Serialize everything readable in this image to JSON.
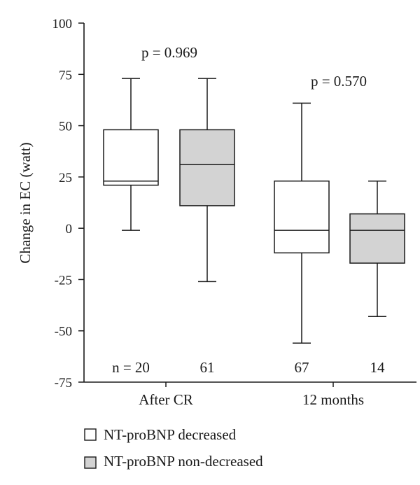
{
  "chart_data": {
    "type": "boxplot",
    "ylabel": "Change in EC (watt)",
    "ylim": [
      -75,
      100
    ],
    "yticks": [
      100,
      75,
      50,
      25,
      0,
      -25,
      -50,
      -75
    ],
    "ytick_labels": [
      "100",
      "75",
      "50",
      "25",
      "0",
      "-25",
      "-50",
      "-75"
    ],
    "categories": [
      "After CR",
      "12 months"
    ],
    "groups": [
      {
        "category": "After CR",
        "series": "NT-proBNP decreased",
        "n_label": "n = 20",
        "whisker_low": -1,
        "q1": 21,
        "median": 23,
        "q3": 48,
        "whisker_high": 73
      },
      {
        "category": "After CR",
        "series": "NT-proBNP non-decreased",
        "n_label": "61",
        "whisker_low": -26,
        "q1": 11,
        "median": 31,
        "q3": 48,
        "whisker_high": 73
      },
      {
        "category": "12 months",
        "series": "NT-proBNP decreased",
        "n_label": "67",
        "whisker_low": -56,
        "q1": -12,
        "median": -1,
        "q3": 23,
        "whisker_high": 61
      },
      {
        "category": "12 months",
        "series": "NT-proBNP non-decreased",
        "n_label": "14",
        "whisker_low": -43,
        "q1": -17,
        "median": -1,
        "q3": 7,
        "whisker_high": 23
      }
    ],
    "annotations": [
      "p = 0.969",
      "p = 0.570"
    ],
    "legend": [
      {
        "name": "NT-proBNP decreased",
        "color": "#ffffff"
      },
      {
        "name": "NT-proBNP non-decreased",
        "color": "#d3d3d3"
      }
    ],
    "legend_position": "bottom",
    "grid": false
  }
}
